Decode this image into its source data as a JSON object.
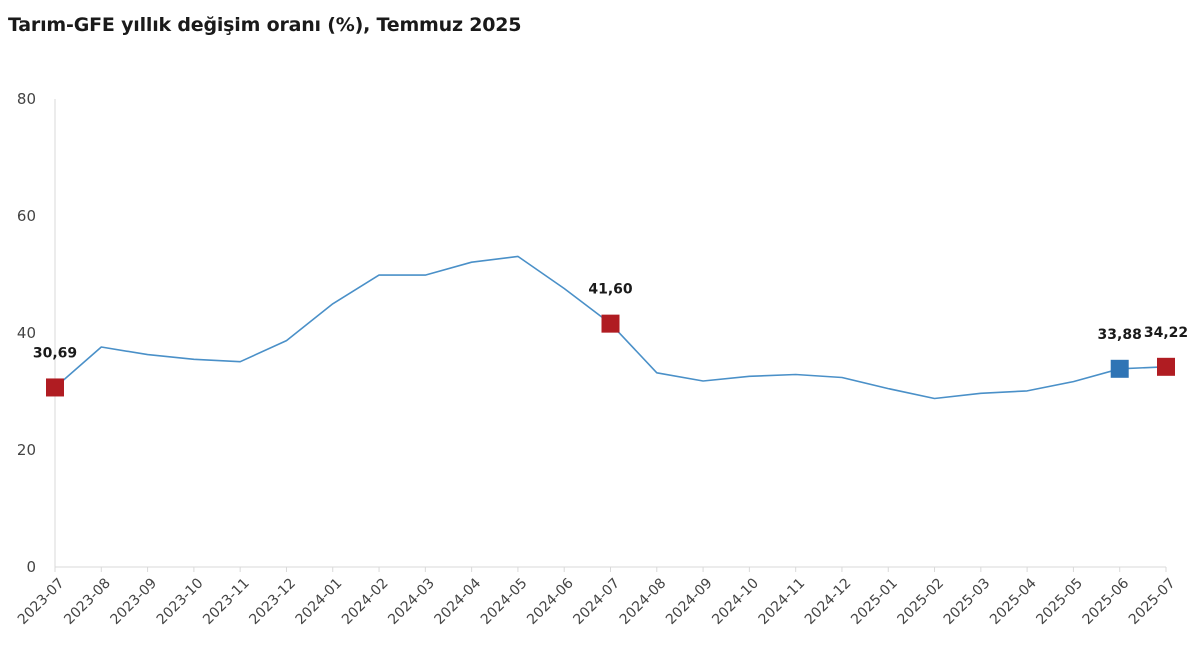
{
  "chart_data": {
    "type": "line",
    "title": "Tarım-GFE yıllık değişim oranı (%), Temmuz 2025",
    "xlabel": "",
    "ylabel": "",
    "ylim": [
      0,
      80
    ],
    "yticks": [
      "0",
      "20",
      "40",
      "60",
      "80"
    ],
    "grid": false,
    "legend": "none",
    "line_color": "#4a90c8",
    "categories": [
      "2023-07",
      "2023-08",
      "2023-09",
      "2023-10",
      "2023-11",
      "2023-12",
      "2024-01",
      "2024-02",
      "2024-03",
      "2024-04",
      "2024-05",
      "2024-06",
      "2024-07",
      "2024-08",
      "2024-09",
      "2024-10",
      "2024-11",
      "2024-12",
      "2025-01",
      "2025-02",
      "2025-03",
      "2025-04",
      "2025-05",
      "2025-06",
      "2025-07"
    ],
    "series": [
      {
        "values": [
          30.69,
          37.6,
          36.3,
          35.5,
          35.1,
          38.7,
          45.0,
          49.9,
          49.9,
          52.1,
          53.1,
          47.6,
          41.6,
          33.2,
          31.8,
          32.6,
          32.9,
          32.4,
          30.5,
          28.8,
          29.7,
          30.1,
          31.7,
          33.88,
          34.22
        ]
      }
    ],
    "highlighted_points": [
      {
        "index": 0,
        "label": "30,69",
        "color": "#b01c22"
      },
      {
        "index": 12,
        "label": "41,60",
        "color": "#b01c22"
      },
      {
        "index": 23,
        "label": "33,88",
        "color": "#2f74b5"
      },
      {
        "index": 24,
        "label": "34,22",
        "color": "#b01c22"
      }
    ]
  }
}
